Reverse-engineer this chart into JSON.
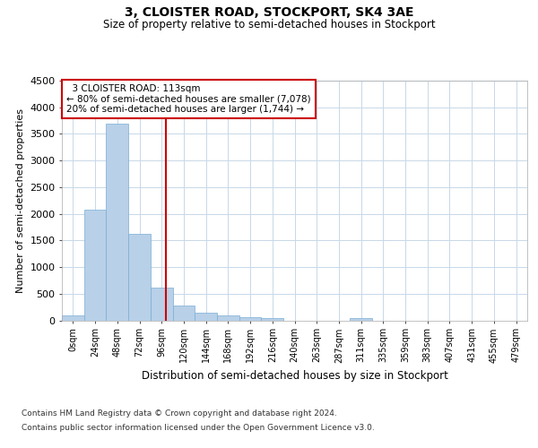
{
  "title": "3, CLOISTER ROAD, STOCKPORT, SK4 3AE",
  "subtitle": "Size of property relative to semi-detached houses in Stockport",
  "xlabel": "Distribution of semi-detached houses by size in Stockport",
  "ylabel": "Number of semi-detached properties",
  "footer_line1": "Contains HM Land Registry data © Crown copyright and database right 2024.",
  "footer_line2": "Contains public sector information licensed under the Open Government Licence v3.0.",
  "property_size": 113,
  "property_label": "3 CLOISTER ROAD: 113sqm",
  "annotation_smaller": "← 80% of semi-detached houses are smaller (7,078)",
  "annotation_larger": "20% of semi-detached houses are larger (1,744) →",
  "bar_color": "#b8d0e8",
  "bar_edge_color": "#7aadd4",
  "vline_color": "#cc0000",
  "annotation_box_edge": "#cc0000",
  "background_color": "#ffffff",
  "grid_color": "#c8d8e8",
  "bin_width": 24,
  "categories": [
    "0sqm",
    "24sqm",
    "48sqm",
    "72sqm",
    "96sqm",
    "120sqm",
    "144sqm",
    "168sqm",
    "192sqm",
    "216sqm",
    "240sqm",
    "263sqm",
    "287sqm",
    "311sqm",
    "335sqm",
    "359sqm",
    "383sqm",
    "407sqm",
    "431sqm",
    "455sqm",
    "479sqm"
  ],
  "bar_heights": [
    95,
    2080,
    3700,
    1620,
    620,
    285,
    140,
    95,
    65,
    35,
    0,
    0,
    0,
    35,
    0,
    0,
    0,
    0,
    0,
    0,
    0
  ],
  "ylim": [
    0,
    4500
  ],
  "yticks": [
    0,
    500,
    1000,
    1500,
    2000,
    2500,
    3000,
    3500,
    4000,
    4500
  ]
}
